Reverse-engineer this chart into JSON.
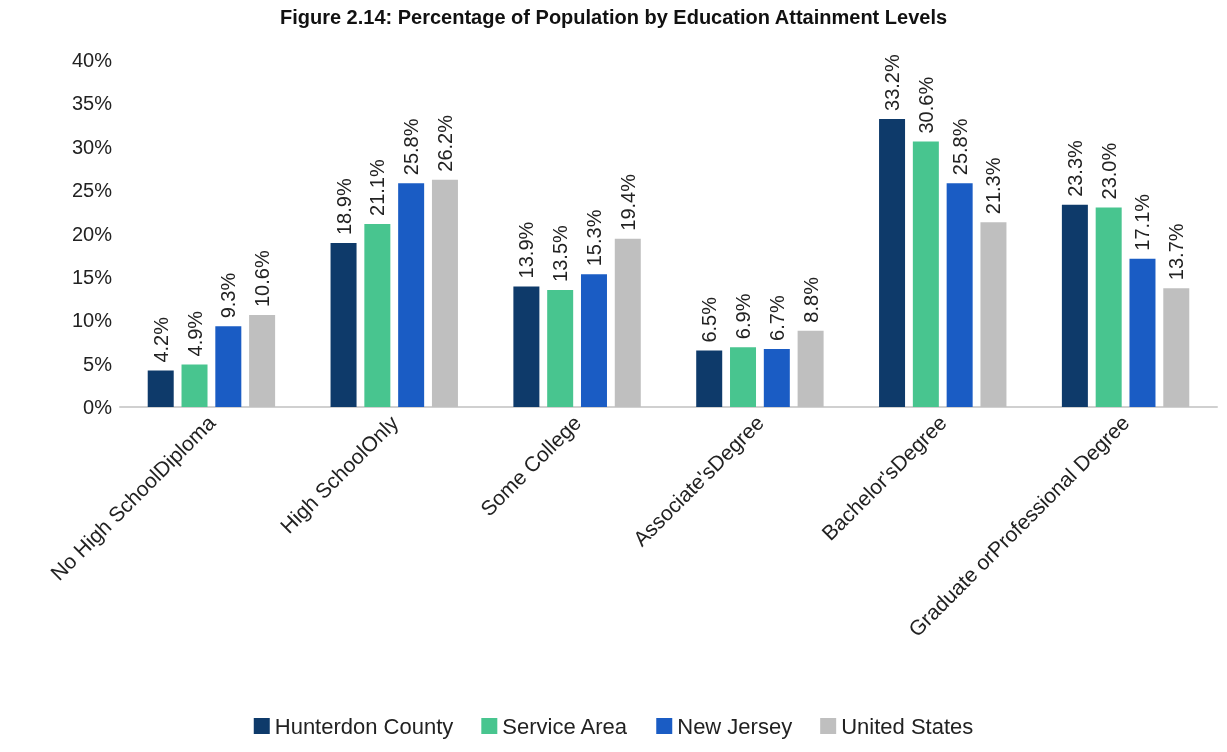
{
  "chart_data": {
    "type": "bar",
    "title": "Figure 2.14: Percentage of Population by Education Attainment Levels",
    "categories": [
      "No High SchoolDiploma",
      "High SchoolOnly",
      "Some College",
      "Associate'sDegree",
      "Bachelor'sDegree",
      "Graduate orProfessional Degree"
    ],
    "series": [
      {
        "name": "Hunterdon County",
        "color": "#0e3a6a",
        "values": [
          4.2,
          18.9,
          13.9,
          6.5,
          33.2,
          23.3
        ],
        "value_labels": [
          "4.2%",
          "18.9%",
          "13.9%",
          "6.5%",
          "33.2%",
          "23.3%"
        ]
      },
      {
        "name": "Service Area",
        "color": "#48c58f",
        "values": [
          4.9,
          21.1,
          13.5,
          6.9,
          30.6,
          23.0
        ],
        "value_labels": [
          "4.9%",
          "21.1%",
          "13.5%",
          "6.9%",
          "30.6%",
          "23.0%"
        ]
      },
      {
        "name": "New Jersey",
        "color": "#1a5cc4",
        "values": [
          9.3,
          25.8,
          15.3,
          6.7,
          25.8,
          17.1
        ],
        "value_labels": [
          "9.3%",
          "25.8%",
          "15.3%",
          "6.7%",
          "25.8%",
          "17.1%"
        ]
      },
      {
        "name": "United States",
        "color": "#bfbfbf",
        "values": [
          10.6,
          26.2,
          19.4,
          8.8,
          21.3,
          13.7
        ],
        "value_labels": [
          "10.6%",
          "26.2%",
          "19.4%",
          "8.8%",
          "21.3%",
          "13.7%"
        ]
      }
    ],
    "ylim": [
      0,
      40
    ],
    "yticks": [
      {
        "value": 0,
        "label": "0%"
      },
      {
        "value": 5,
        "label": "5%"
      },
      {
        "value": 10,
        "label": "10%"
      },
      {
        "value": 15,
        "label": "15%"
      },
      {
        "value": 20,
        "label": "20%"
      },
      {
        "value": 25,
        "label": "25%"
      },
      {
        "value": 30,
        "label": "30%"
      },
      {
        "value": 35,
        "label": "35%"
      },
      {
        "value": 40,
        "label": "40%"
      }
    ],
    "grid": false,
    "legend": "bottom"
  }
}
